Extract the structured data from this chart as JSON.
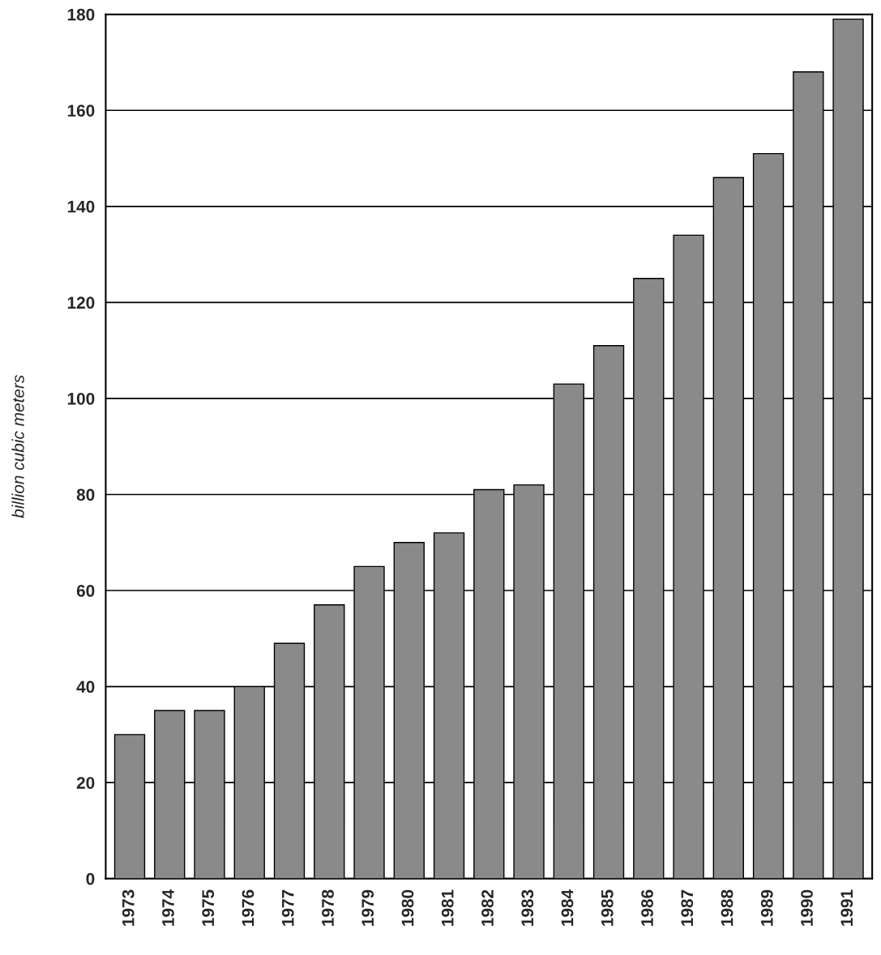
{
  "chart_data": {
    "type": "bar",
    "ylabel": "billion cubic meters",
    "categories": [
      "1973",
      "1974",
      "1975",
      "1976",
      "1977",
      "1978",
      "1979",
      "1980",
      "1981",
      "1982",
      "1983",
      "1984",
      "1985",
      "1986",
      "1987",
      "1988",
      "1989",
      "1990",
      "1991"
    ],
    "values": [
      30,
      35,
      35,
      40,
      49,
      57,
      65,
      70,
      72,
      81,
      82,
      103,
      111,
      125,
      134,
      146,
      151,
      168,
      179
    ],
    "color": "#8a8a8a",
    "ylim": [
      0,
      180
    ],
    "yticks": [
      0,
      20,
      40,
      60,
      80,
      100,
      120,
      140,
      160,
      180
    ],
    "grid": "y"
  }
}
